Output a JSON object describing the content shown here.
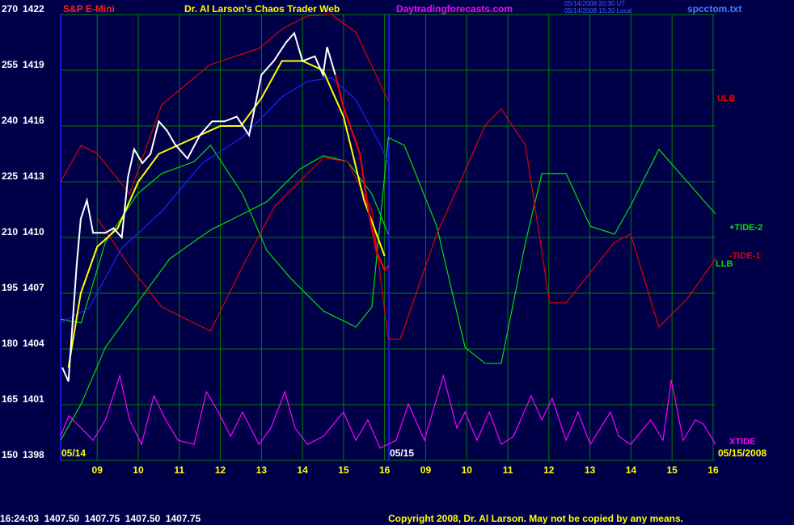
{
  "header": {
    "left": "S&P E-Mini",
    "center": "Dr. Al Larson's Chaos Trader Web",
    "site": "Daytradingforecasts.com",
    "stamp": [
      "05/14/2008 20:30 UT",
      "05/14/2008 15:30 Local"
    ],
    "file": "spcctom.txt"
  },
  "footer": {
    "quote": "16:24:03  1407.50  1407.75  1407.50  1407.75",
    "copyright": "Copyright 2008, Dr. Al Larson. May not be copied by any means."
  },
  "chart_data": {
    "type": "line",
    "grid": true,
    "background": "#000048",
    "grid_color": "#008000",
    "xlim": [
      8.11,
      24.06
    ],
    "xticks": [
      {
        "value": 9,
        "label": "09"
      },
      10,
      11,
      12,
      13,
      14,
      15,
      16,
      {
        "value": 17,
        "label": "09"
      },
      {
        "value": 18,
        "label": "10"
      },
      {
        "value": 19,
        "label": "11"
      },
      {
        "value": 20,
        "label": "12"
      },
      {
        "value": 21,
        "label": "13"
      },
      {
        "value": 22,
        "label": "14"
      },
      {
        "value": 23,
        "label": "15"
      },
      {
        "value": 24,
        "label": "16"
      }
    ],
    "ylim": [
      150,
      270
    ],
    "yticks": [
      150,
      165,
      180,
      195,
      210,
      225,
      240,
      255,
      270
    ],
    "y2lim": [
      1398,
      1422
    ],
    "y2ticks": [
      1398,
      1401,
      1404,
      1407,
      1410,
      1413,
      1416,
      1419,
      1422
    ],
    "annotations": [
      "05/14",
      "05/15",
      "05/15/2008"
    ],
    "series": [
      {
        "name": "ULB",
        "color": "#e00000",
        "x": [
          8.11,
          8.61,
          9,
          9.79,
          10.57,
          11.75,
          12.94,
          13.53,
          14.12,
          14.71,
          15.3,
          16.09
        ],
        "values": [
          225,
          234.8,
          232.6,
          221.7,
          245.7,
          256.5,
          260.9,
          266.3,
          269.6,
          270,
          265.2,
          246.7
        ]
      },
      {
        "name": "LLB",
        "color": "#00e000",
        "x": [
          8.11,
          8.61,
          9.2,
          9.98,
          10.77,
          11.76,
          12.54,
          13.13,
          13.92,
          14.51,
          15.1,
          15.69,
          16.09
        ],
        "values": [
          155.4,
          165.2,
          180.4,
          192.4,
          204.3,
          212,
          216.3,
          219.6,
          228.3,
          232,
          230.4,
          221.7,
          210.9
        ]
      },
      {
        "name": "+TIDE-2",
        "color": "#00e000",
        "x": [
          8.11,
          8.61,
          9.2,
          9.98,
          10.57,
          11.36,
          11.76,
          12.54,
          13.13,
          13.72,
          14.51,
          15.3,
          15.69,
          16.09,
          16.48,
          17.27,
          17.96,
          18.45,
          18.84,
          19.43,
          19.83,
          20.42,
          21.01,
          21.6,
          21.99,
          22.68,
          23.37,
          24.06
        ],
        "values": [
          188,
          187,
          208.7,
          221.7,
          227.2,
          230.4,
          234.8,
          221.7,
          206.5,
          198.9,
          190.2,
          185.9,
          191.3,
          236.9,
          234.8,
          213,
          180.4,
          176.1,
          176.1,
          208.7,
          227.2,
          227.2,
          213,
          210.9,
          218.5,
          233.7,
          225,
          216.3
        ]
      },
      {
        "name": "-TIDE-1",
        "color": "#e00000",
        "x": [
          9,
          9.79,
          10.57,
          11.76,
          12.54,
          13.33,
          14.51,
          15.1,
          15.69,
          16.09,
          16.38,
          17.27,
          18.45,
          18.84,
          19.43,
          20.02,
          20.42,
          21.6,
          21.99,
          22.68,
          23.37,
          24.06
        ],
        "values": [
          215.2,
          202.2,
          191.3,
          184.8,
          202.2,
          218.5,
          231.5,
          230.4,
          217.4,
          182.6,
          182.6,
          210.9,
          240.2,
          244.6,
          234.8,
          192.4,
          192.4,
          208.7,
          210.9,
          185.9,
          193.5,
          204.3
        ]
      },
      {
        "name": "XTIDE",
        "color": "#ff00ff",
        "x": [
          8.11,
          8.31,
          8.61,
          8.9,
          9.2,
          9.55,
          9.79,
          10.08,
          10.38,
          10.67,
          10.97,
          11.36,
          11.66,
          11.95,
          12.25,
          12.54,
          12.94,
          13.23,
          13.57,
          13.82,
          14.12,
          14.51,
          15,
          15.3,
          15.59,
          15.89,
          16.28,
          16.58,
          16.97,
          17.43,
          17.76,
          17.96,
          18.25,
          18.55,
          18.84,
          19.14,
          19.57,
          19.83,
          20.08,
          20.42,
          20.71,
          21.01,
          21.5,
          21.7,
          21.99,
          22.48,
          22.78,
          22.98,
          23.27,
          23.57,
          23.76,
          24.06
        ],
        "values": [
          156.5,
          162,
          158.7,
          155.4,
          160.9,
          172.8,
          160.9,
          154.3,
          167.4,
          160.9,
          155.4,
          154.3,
          168.5,
          163,
          156.5,
          163,
          154.3,
          158.7,
          168.5,
          158.7,
          154.3,
          156.5,
          163,
          155.4,
          160.9,
          153.3,
          155.4,
          165.2,
          155.4,
          172.8,
          158.7,
          163,
          155.4,
          163,
          154.3,
          156.5,
          167.4,
          160.9,
          166.7,
          155.4,
          163,
          154.3,
          163,
          156.5,
          154.3,
          160.9,
          155.4,
          171.7,
          155.4,
          160.9,
          159.8,
          154.3
        ]
      },
      {
        "color": "#2020ff",
        "x": [
          8.11,
          8.8,
          9.59,
          10.57,
          11.56,
          12.54,
          13.52,
          14.12,
          14.71,
          15.3,
          15.89,
          16.09
        ],
        "values": [
          187,
          191,
          207,
          217,
          230,
          237,
          248,
          252,
          253,
          247,
          235,
          230
        ]
      },
      {
        "color": "#ffff00",
        "axis": "y2",
        "x": [
          8.3,
          8.6,
          9,
          9.5,
          10,
          10.5,
          11,
          11.5,
          12,
          12.5,
          13,
          13.5,
          14,
          14.5,
          15,
          15.5,
          16
        ],
        "values": [
          1403,
          1407,
          1409.5,
          1410.5,
          1413,
          1414.5,
          1415,
          1415.5,
          1416,
          1416,
          1417.5,
          1419.5,
          1419.5,
          1419,
          1416.5,
          1412,
          1409
        ]
      },
      {
        "color": "#ffffff",
        "axis": "y2",
        "x": [
          8.15,
          8.3,
          8.5,
          8.6,
          8.75,
          8.9,
          9.2,
          9.4,
          9.6,
          9.75,
          9.9,
          10.1,
          10.3,
          10.5,
          10.7,
          10.9,
          11.2,
          11.5,
          11.8,
          12.1,
          12.4,
          12.7,
          13,
          13.3,
          13.6,
          13.8,
          14,
          14.3,
          14.5,
          14.6,
          14.8
        ],
        "values": [
          1403,
          1402.25,
          1408.5,
          1411,
          1412,
          1410.25,
          1410.25,
          1410.5,
          1410,
          1413.25,
          1414.75,
          1414,
          1414.5,
          1416.25,
          1415.75,
          1415,
          1414.25,
          1415.5,
          1416.25,
          1416.25,
          1416.5,
          1415.5,
          1418.75,
          1419.5,
          1420.5,
          1421,
          1419.5,
          1419.75,
          1418.75,
          1420.25,
          1418.75
        ]
      },
      {
        "color": "#ff0000",
        "axis": "y2",
        "x": [
          14.8,
          15,
          15.2,
          15.4,
          15.6,
          15.8,
          16,
          16.1
        ],
        "values": [
          1418.75,
          1417,
          1415.75,
          1414.5,
          1411.5,
          1409.25,
          1408.25,
          1408.5
        ]
      }
    ]
  }
}
